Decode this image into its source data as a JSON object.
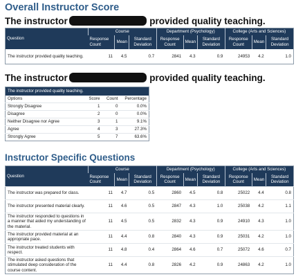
{
  "title": "Overall Instructor Score",
  "heading1": {
    "pre": "The instructor",
    "post": "provided quality teaching."
  },
  "heading2": {
    "pre": "The instructor",
    "post": "provided quality teaching."
  },
  "section_title": "Instructor Specific Questions",
  "group_headers": [
    "Course",
    "Department (Psychology)",
    "College (Arts and Sciences)"
  ],
  "sub_headers": {
    "question": "Question",
    "response_count": "Response Count",
    "mean": "Mean",
    "std_dev": "Standard Deviation"
  },
  "overall_table": {
    "rows": [
      [
        "The instructor provided quality teaching.",
        "11",
        "4.5",
        "0.7",
        "2841",
        "4.3",
        "0.9",
        "24953",
        "4.2",
        "1.0"
      ]
    ]
  },
  "distribution_table": {
    "caption": "The instructor provided quality teaching.",
    "columns": [
      "Options",
      "Score",
      "Count",
      "Percentage"
    ],
    "rows": [
      [
        "Strongly Disagree",
        "1",
        "0",
        "0.0%"
      ],
      [
        "Disagree",
        "2",
        "0",
        "0.0%"
      ],
      [
        "Neither Disagree nor Agree",
        "3",
        "1",
        "9.1%"
      ],
      [
        "Agree",
        "4",
        "3",
        "27.3%"
      ],
      [
        "Strongly Agree",
        "5",
        "7",
        "63.6%"
      ]
    ]
  },
  "specific_table": {
    "rows": [
      [
        "The instructor was prepared for class.",
        "11",
        "4.7",
        "0.5",
        "2860",
        "4.5",
        "0.8",
        "25022",
        "4.4",
        "0.8"
      ],
      [
        "The instructor presented material clearly.",
        "11",
        "4.6",
        "0.5",
        "2847",
        "4.3",
        "1.0",
        "25038",
        "4.2",
        "1.1"
      ],
      [
        "The instructor responded to questions in a manner that aided my understanding of the material.",
        "11",
        "4.5",
        "0.5",
        "2832",
        "4.3",
        "0.9",
        "24910",
        "4.3",
        "1.0"
      ],
      [
        "The instructor provided material at an appropriate pace.",
        "11",
        "4.4",
        "0.8",
        "2840",
        "4.3",
        "0.9",
        "25031",
        "4.2",
        "1.0"
      ],
      [
        "The instructor treated students with respect.",
        "11",
        "4.8",
        "0.4",
        "2864",
        "4.6",
        "0.7",
        "25072",
        "4.6",
        "0.7"
      ],
      [
        "The instructor asked questions that stimulated deep consideration of the course content.",
        "11",
        "4.4",
        "0.8",
        "2826",
        "4.2",
        "0.9",
        "24863",
        "4.2",
        "1.0"
      ]
    ]
  }
}
